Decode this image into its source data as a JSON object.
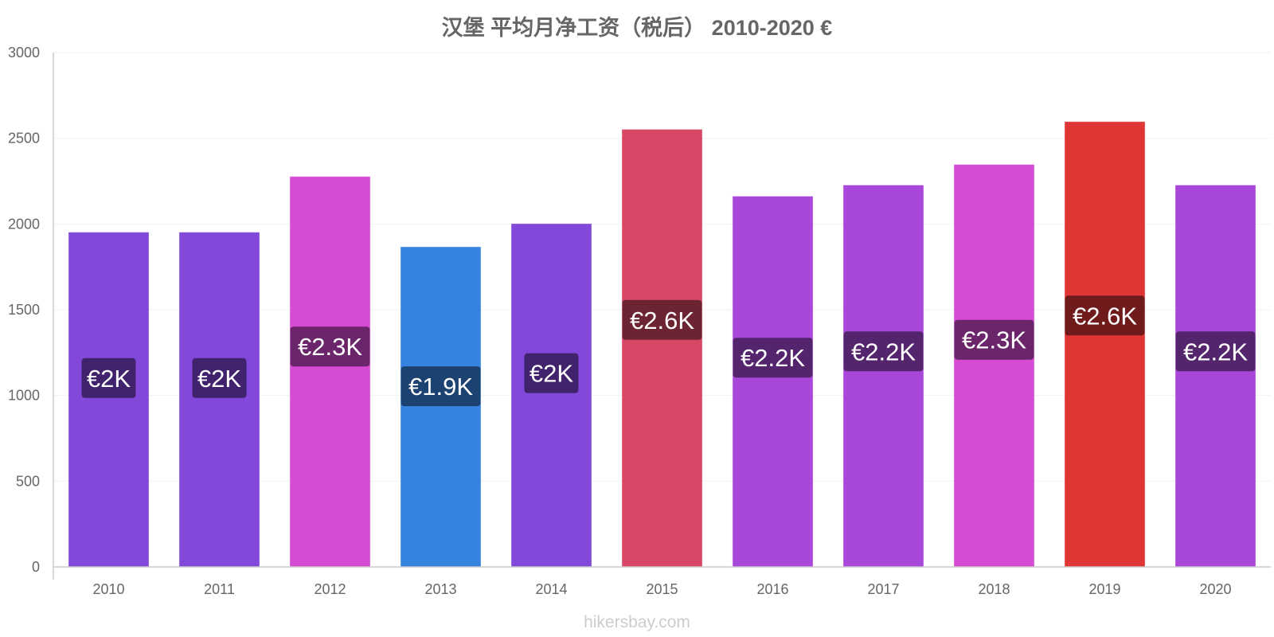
{
  "chart_data": {
    "type": "bar",
    "title": "汉堡 平均月净工资（税后） 2010-2020 €",
    "xlabel": "",
    "ylabel": "",
    "ylim": [
      0,
      3000
    ],
    "yticks": [
      0,
      500,
      1000,
      1500,
      2000,
      2500,
      3000
    ],
    "grid": true,
    "categories": [
      "2010",
      "2011",
      "2012",
      "2013",
      "2014",
      "2015",
      "2016",
      "2017",
      "2018",
      "2019",
      "2020"
    ],
    "values": [
      1950,
      1950,
      2275,
      1865,
      2000,
      2550,
      2160,
      2225,
      2345,
      2595,
      2225
    ],
    "data_labels": [
      "€2K",
      "€2K",
      "€2.3K",
      "€1.9K",
      "€2K",
      "€2.6K",
      "€2.2K",
      "€2.2K",
      "€2.3K",
      "€2.6K",
      "€2.2K"
    ],
    "bar_colors": [
      "#8148d9",
      "#8148d9",
      "#d64bd4",
      "#3684e0",
      "#8148d9",
      "#d84866",
      "#a847d9",
      "#a847d9",
      "#d64bd4",
      "#e03535",
      "#a847d9"
    ],
    "label_bg_colors": [
      "#41236d",
      "#41236d",
      "#6b256a",
      "#1b4270",
      "#41236d",
      "#6c2433",
      "#54246d",
      "#54246d",
      "#6b256a",
      "#701b1b",
      "#54246d"
    ]
  },
  "watermark": "hikersbay.com"
}
